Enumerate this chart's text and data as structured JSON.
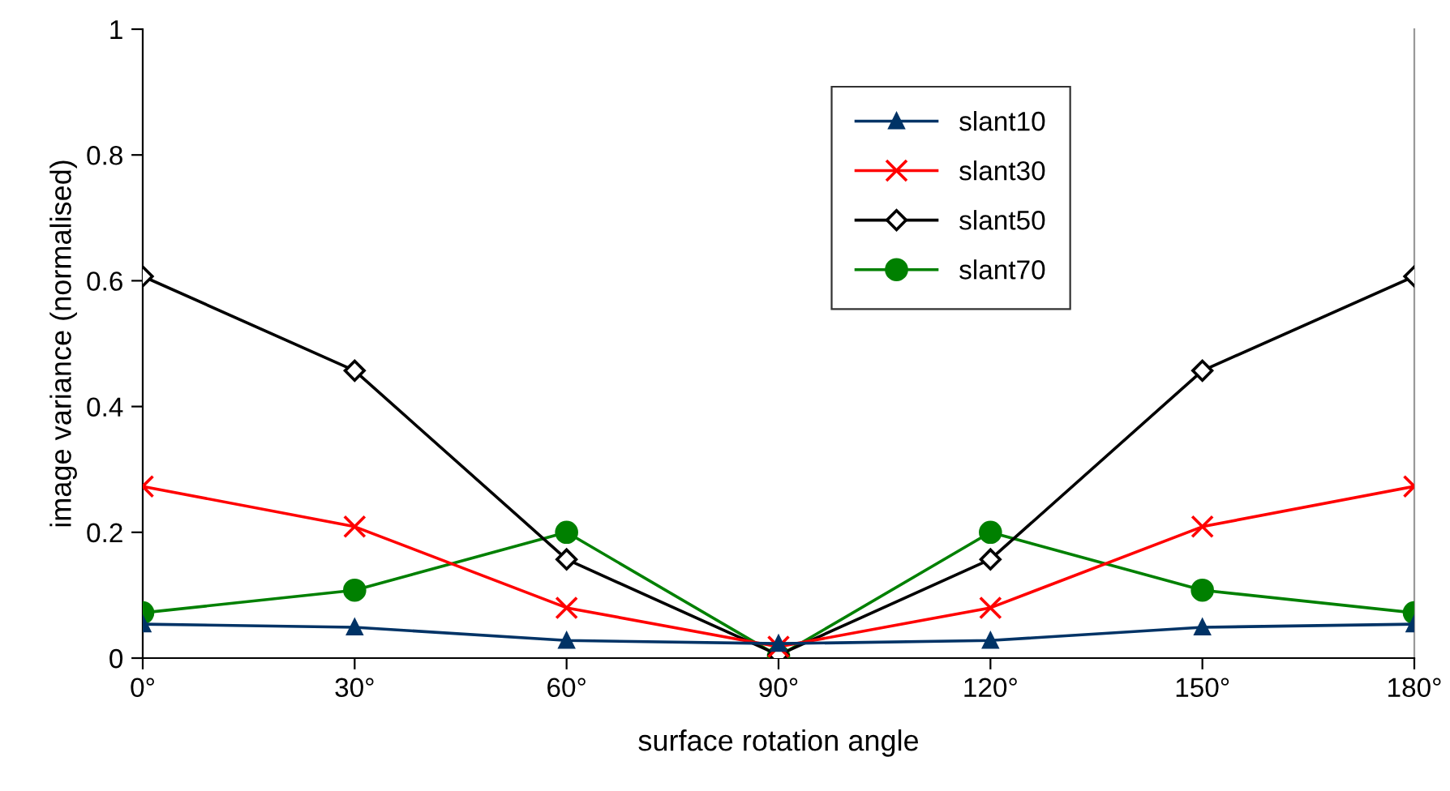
{
  "chart_data": {
    "type": "line",
    "xlabel": "surface rotation angle",
    "ylabel": "image variance (normalised)",
    "x": [
      0,
      30,
      60,
      90,
      120,
      150,
      180
    ],
    "xlim": [
      0,
      180
    ],
    "xticks": [
      {
        "value": 0,
        "label": "0°"
      },
      {
        "value": 30,
        "label": "30°"
      },
      {
        "value": 60,
        "label": "60°"
      },
      {
        "value": 90,
        "label": "90°"
      },
      {
        "value": 120,
        "label": "120°"
      },
      {
        "value": 150,
        "label": "150°"
      },
      {
        "value": 180,
        "label": "180°"
      }
    ],
    "ylim": [
      0,
      1
    ],
    "yticks": [
      0,
      0.2,
      0.4,
      0.6,
      0.8,
      1
    ],
    "grid": false,
    "legend": "top right",
    "series": [
      {
        "name": "slant10",
        "color": "#003366",
        "marker": "triangle",
        "values": [
          0.054,
          0.049,
          0.028,
          0.023,
          0.028,
          0.049,
          0.054
        ]
      },
      {
        "name": "slant30",
        "color": "#ff0000",
        "marker": "cross",
        "values": [
          0.273,
          0.209,
          0.08,
          0.018,
          0.08,
          0.209,
          0.273
        ]
      },
      {
        "name": "slant50",
        "color": "#000000",
        "marker": "diamond",
        "values": [
          0.607,
          0.457,
          0.157,
          0.005,
          0.157,
          0.457,
          0.607
        ]
      },
      {
        "name": "slant70",
        "color": "#008000",
        "marker": "circle",
        "values": [
          0.072,
          0.108,
          0.2,
          0.003,
          0.2,
          0.108,
          0.072
        ]
      }
    ]
  }
}
